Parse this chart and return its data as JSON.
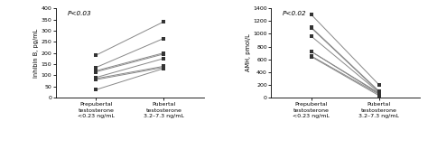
{
  "inhibin_pre": [
    35,
    80,
    85,
    90,
    115,
    120,
    135,
    190
  ],
  "inhibin_pub": [
    130,
    135,
    140,
    175,
    195,
    200,
    265,
    340
  ],
  "amh_pre": [
    640,
    650,
    720,
    720,
    960,
    1090,
    1100,
    1300
  ],
  "amh_pub": [
    30,
    50,
    60,
    70,
    80,
    90,
    100,
    200
  ],
  "inhibin_ylabel": "Inhibin B, pg/mL",
  "amh_ylabel": "AMH, pmol/L",
  "inhibin_ylim": [
    0,
    400
  ],
  "amh_ylim": [
    0,
    1400
  ],
  "inhibin_yticks": [
    0,
    50,
    100,
    150,
    200,
    250,
    300,
    350,
    400
  ],
  "amh_yticks": [
    0,
    200,
    400,
    600,
    800,
    1000,
    1200,
    1400
  ],
  "inhibin_pval": "P<0.03",
  "amh_pval": "P<0.02",
  "xlabel_pre": "Prepubertal\ntestosterone\n<0.23 ng/mL",
  "xlabel_pub": "Pubertal\ntestosterone\n3.2–7.3 ng/mL",
  "line_color": "#888888",
  "marker_color": "#333333",
  "bg_color": "#ffffff"
}
